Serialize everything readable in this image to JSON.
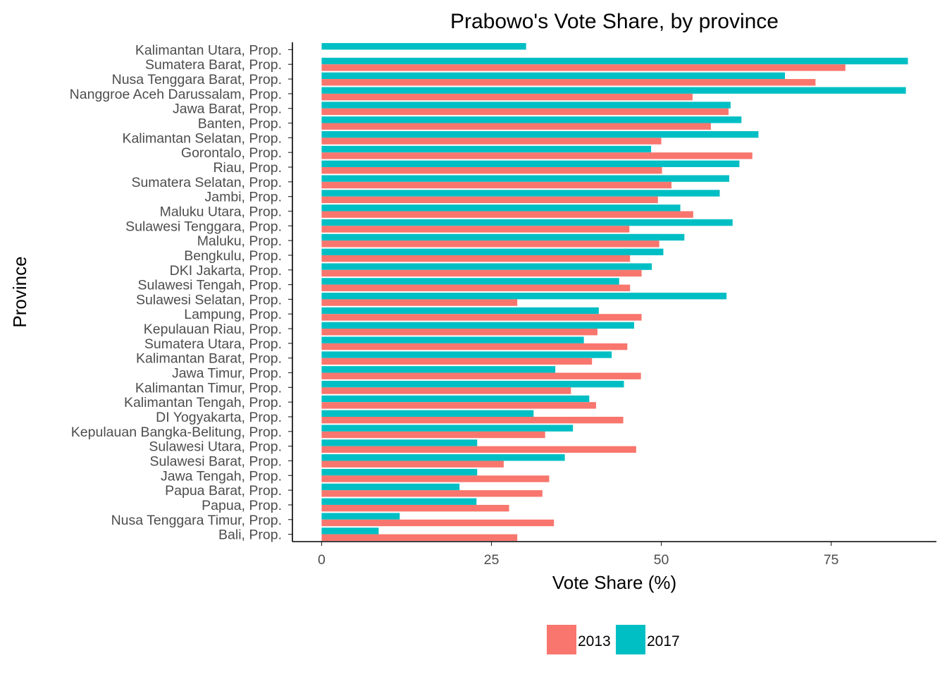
{
  "chart_data": {
    "type": "bar",
    "orientation": "horizontal",
    "title": "Prabowo's Vote Share, by province",
    "xlabel": "Vote Share (%)",
    "ylabel": "Province",
    "xlim": [
      -4.3,
      90.5
    ],
    "xticks": [
      0,
      25,
      50,
      75
    ],
    "grid": false,
    "legend_position": "bottom",
    "categories": [
      "Kalimantan Utara, Prop.",
      "Sumatera Barat, Prop.",
      "Nusa Tenggara Barat, Prop.",
      "Nanggroe Aceh Darussalam, Prop.",
      "Jawa Barat, Prop.",
      "Banten, Prop.",
      "Kalimantan Selatan, Prop.",
      "Gorontalo, Prop.",
      "Riau, Prop.",
      "Sumatera Selatan, Prop.",
      "Jambi, Prop.",
      "Maluku Utara, Prop.",
      "Sulawesi Tenggara, Prop.",
      "Maluku, Prop.",
      "Bengkulu, Prop.",
      "DKI Jakarta, Prop.",
      "Sulawesi Tengah, Prop.",
      "Sulawesi Selatan, Prop.",
      "Lampung, Prop.",
      "Kepulauan Riau, Prop.",
      "Sumatera Utara, Prop.",
      "Kalimantan Barat, Prop.",
      "Jawa Timur, Prop.",
      "Kalimantan Timur, Prop.",
      "Kalimantan Tengah, Prop.",
      "DI Yogyakarta, Prop.",
      "Kepulauan Bangka-Belitung, Prop.",
      "Sulawesi Utara, Prop.",
      "Sulawesi Barat, Prop.",
      "Jawa Tengah, Prop.",
      "Papua Barat, Prop.",
      "Papua, Prop.",
      "Nusa Tenggara Timur, Prop.",
      "Bali, Prop."
    ],
    "series": [
      {
        "name": "2013",
        "color": "#F8766D",
        "values": [
          null,
          77.1,
          72.7,
          54.6,
          59.9,
          57.3,
          50.0,
          63.4,
          50.1,
          51.5,
          49.5,
          54.7,
          45.3,
          49.7,
          45.4,
          47.1,
          45.4,
          28.8,
          47.1,
          40.6,
          45.0,
          39.8,
          47.0,
          36.7,
          40.4,
          44.4,
          32.9,
          46.3,
          26.8,
          33.5,
          32.5,
          27.6,
          34.2,
          28.8
        ]
      },
      {
        "name": "2017",
        "color": "#00BFC4",
        "values": [
          30.1,
          86.3,
          68.2,
          86.0,
          60.2,
          61.8,
          64.3,
          48.5,
          61.5,
          60.0,
          58.6,
          52.8,
          60.5,
          53.4,
          50.3,
          48.6,
          43.8,
          59.6,
          40.8,
          46.0,
          38.6,
          42.7,
          34.4,
          44.5,
          39.4,
          31.2,
          37.0,
          22.9,
          35.8,
          22.9,
          20.3,
          22.8,
          11.5,
          8.4
        ]
      }
    ]
  }
}
